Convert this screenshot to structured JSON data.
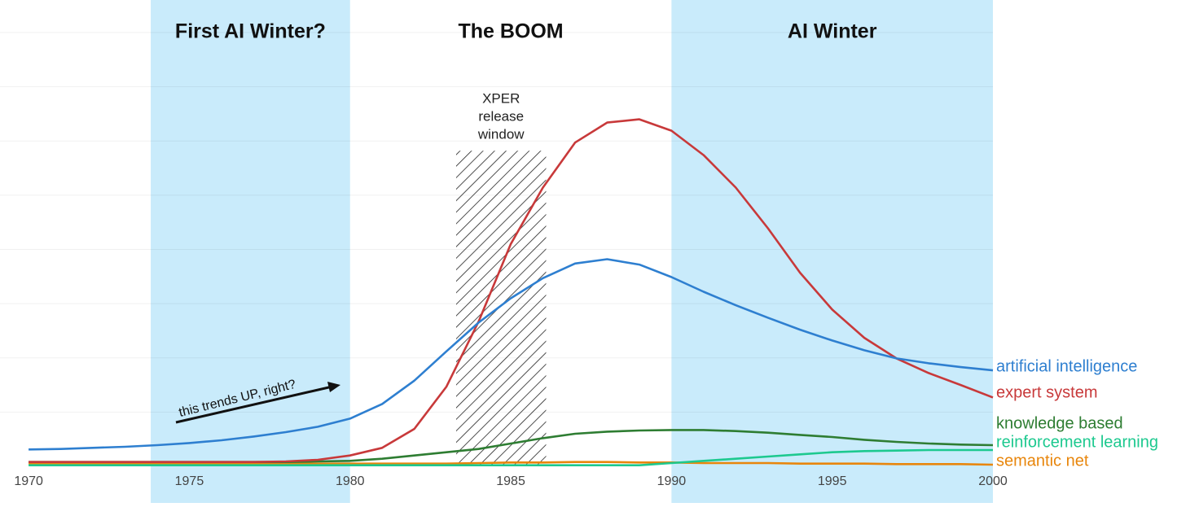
{
  "chart_data": {
    "type": "line",
    "x": [
      1970,
      1971,
      1972,
      1973,
      1974,
      1975,
      1976,
      1977,
      1978,
      1979,
      1980,
      1981,
      1982,
      1983,
      1984,
      1985,
      1986,
      1987,
      1988,
      1989,
      1990,
      1991,
      1992,
      1993,
      1994,
      1995,
      1996,
      1997,
      1998,
      1999,
      2000
    ],
    "series": [
      {
        "name": "artificial intelligence",
        "color": "#2e7fd0",
        "values": [
          0.31,
          0.32,
          0.34,
          0.36,
          0.39,
          0.43,
          0.48,
          0.55,
          0.63,
          0.73,
          0.88,
          1.15,
          1.58,
          2.12,
          2.65,
          3.1,
          3.47,
          3.74,
          3.82,
          3.72,
          3.49,
          3.22,
          2.97,
          2.74,
          2.52,
          2.32,
          2.14,
          1.99,
          1.9,
          1.83,
          1.77
        ]
      },
      {
        "name": "expert system",
        "color": "#c8393a",
        "values": [
          0.08,
          0.08,
          0.08,
          0.08,
          0.08,
          0.08,
          0.08,
          0.08,
          0.09,
          0.12,
          0.2,
          0.34,
          0.69,
          1.47,
          2.67,
          4.1,
          5.14,
          5.97,
          6.34,
          6.4,
          6.19,
          5.74,
          5.14,
          4.39,
          3.57,
          2.89,
          2.37,
          1.99,
          1.72,
          1.5,
          1.27
        ]
      },
      {
        "name": "knowledge based",
        "color": "#2e7d32",
        "values": [
          0.08,
          0.08,
          0.08,
          0.08,
          0.08,
          0.08,
          0.08,
          0.08,
          0.08,
          0.09,
          0.1,
          0.14,
          0.2,
          0.26,
          0.32,
          0.42,
          0.52,
          0.6,
          0.64,
          0.66,
          0.67,
          0.67,
          0.65,
          0.62,
          0.58,
          0.54,
          0.49,
          0.45,
          0.42,
          0.4,
          0.39
        ]
      },
      {
        "name": "reinforcement learning",
        "color": "#1dc98f",
        "values": [
          0.02,
          0.02,
          0.02,
          0.02,
          0.02,
          0.02,
          0.02,
          0.02,
          0.02,
          0.02,
          0.02,
          0.02,
          0.02,
          0.02,
          0.02,
          0.02,
          0.02,
          0.02,
          0.02,
          0.02,
          0.06,
          0.1,
          0.14,
          0.18,
          0.22,
          0.26,
          0.28,
          0.29,
          0.3,
          0.3,
          0.3
        ]
      },
      {
        "name": "semantic net",
        "color": "#e8860c",
        "values": [
          0.05,
          0.05,
          0.05,
          0.05,
          0.05,
          0.05,
          0.05,
          0.05,
          0.05,
          0.05,
          0.05,
          0.05,
          0.05,
          0.05,
          0.06,
          0.07,
          0.07,
          0.08,
          0.08,
          0.07,
          0.07,
          0.06,
          0.06,
          0.06,
          0.05,
          0.05,
          0.05,
          0.04,
          0.04,
          0.04,
          0.03
        ]
      }
    ],
    "xlim": [
      1969.11,
      2000
    ],
    "xticks": [
      1970,
      1975,
      1980,
      1985,
      1990,
      1995,
      2000
    ],
    "ylim": [
      0,
      8.6
    ],
    "yticks": [
      1,
      2,
      3,
      4,
      5,
      6,
      7,
      8
    ],
    "grid": true,
    "regions": [
      {
        "label": "First AI Winter?",
        "start": 1973.8,
        "end": 1980,
        "shaded": true,
        "color": "#c9ebfb"
      },
      {
        "label": "The BOOM",
        "start": 1980,
        "end": 1990,
        "shaded": false
      },
      {
        "label": "AI Winter",
        "start": 1990,
        "end": 2000,
        "shaded": true,
        "color": "#c9ebfb"
      }
    ],
    "hatch": {
      "label": [
        "XPER",
        "release",
        "window"
      ],
      "start": 1983.3,
      "end": 1986.1,
      "top": 5.82
    },
    "annotation": "this trends UP, right?"
  }
}
